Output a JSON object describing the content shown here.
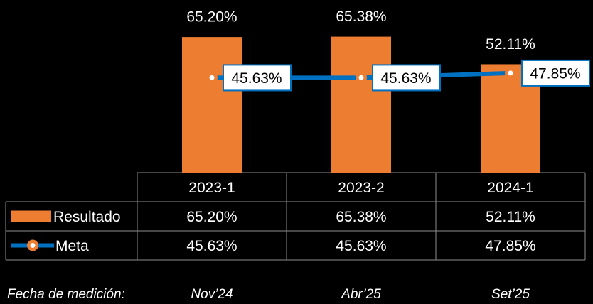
{
  "chart_data": {
    "type": "bar",
    "categories": [
      "2023-1",
      "2023-2",
      "2024-1"
    ],
    "series": [
      {
        "name": "Resultado",
        "type": "bar",
        "color": "#ed7d31",
        "values": [
          65.2,
          65.38,
          52.11
        ],
        "value_labels": [
          "65.20%",
          "65.38%",
          "52.11%"
        ]
      },
      {
        "name": "Meta",
        "type": "line",
        "color": "#0070c0",
        "marker_color": "#ed7d31",
        "values": [
          45.63,
          45.63,
          47.85
        ],
        "value_labels": [
          "45.63%",
          "45.63%",
          "47.85%"
        ]
      }
    ],
    "ylim": [
      0,
      83
    ]
  },
  "measurement": {
    "label": "Fecha de medición:",
    "dates": [
      "Nov’24",
      "Abr’25",
      "Set’25"
    ]
  }
}
